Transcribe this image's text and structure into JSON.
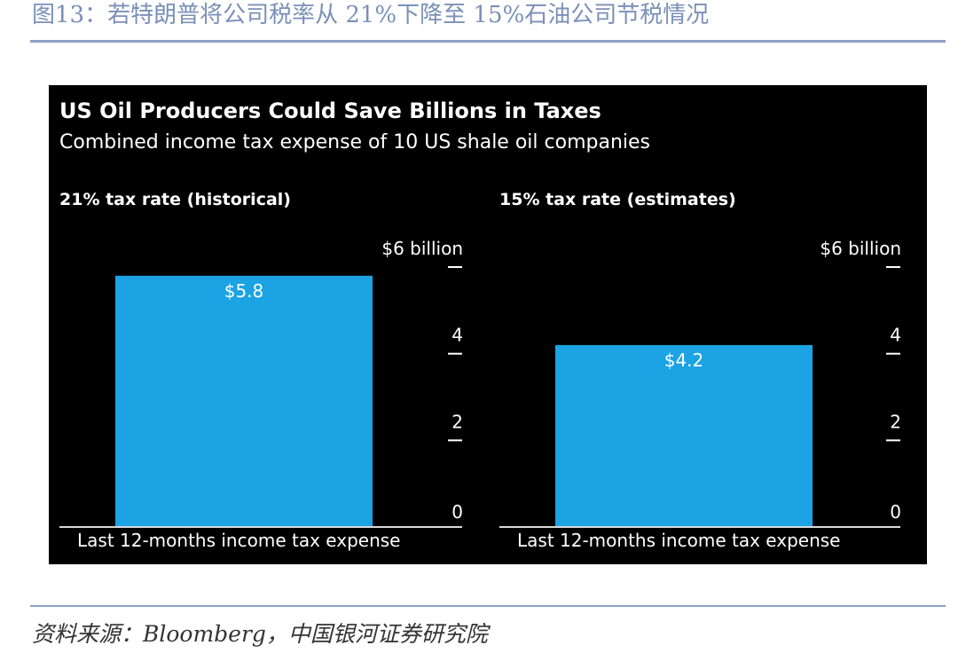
{
  "figure": {
    "title": "图13：若特朗普将公司税率从 21%下降至 15%石油公司节税情况",
    "source": "资料来源：Bloomberg，中国银河证券研究院"
  },
  "chart": {
    "title": "US Oil Producers Could Save Billions in Taxes",
    "subtitle": "Combined income tax expense of 10 US shale oil companies",
    "background": "#000000",
    "bar_color": "#1ba3e4",
    "text_color": "#ffffff"
  },
  "chart_data": [
    {
      "type": "bar",
      "title": "21% tax rate (historical)",
      "categories": [
        "Last 12-months income tax expense"
      ],
      "values": [
        5.8
      ],
      "data_labels": [
        "$5.8"
      ],
      "ylim": [
        0,
        6
      ],
      "yticks": [
        0,
        2,
        4,
        6
      ],
      "ytick_labels": [
        "0",
        "2",
        "4",
        "$6 billion"
      ],
      "grid": false
    },
    {
      "type": "bar",
      "title": "15% tax rate (estimates)",
      "categories": [
        "Last 12-months income tax expense"
      ],
      "values": [
        4.2
      ],
      "data_labels": [
        "$4.2"
      ],
      "ylim": [
        0,
        6
      ],
      "yticks": [
        0,
        2,
        4,
        6
      ],
      "ytick_labels": [
        "0",
        "2",
        "4",
        "$6 billion"
      ],
      "grid": false
    }
  ]
}
